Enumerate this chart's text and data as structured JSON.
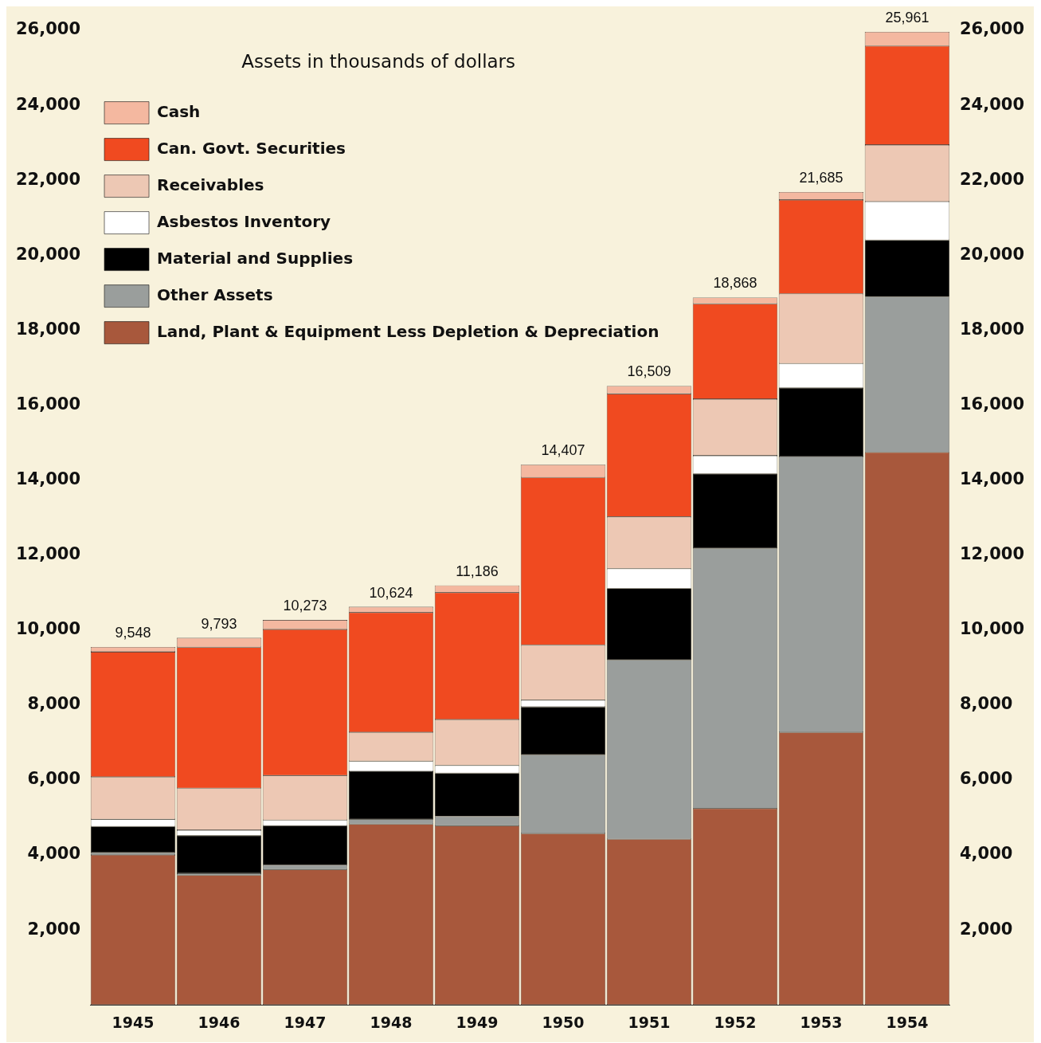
{
  "chart_data": {
    "type": "bar",
    "stacked": true,
    "legend": "top left",
    "legend_title": "Assets in thousands of dollars",
    "categories": [
      "1945",
      "1946",
      "1947",
      "1948",
      "1949",
      "1950",
      "1951",
      "1952",
      "1953",
      "1954"
    ],
    "series": [
      {
        "name": "Land, Plant & Equipment Less Depletion & Depreciation",
        "color": "#a8583c",
        "values": [
          4000,
          3460,
          3610,
          4820,
          4780,
          4570,
          4420,
          5240,
          7270,
          14740
        ]
      },
      {
        "name": "Other Assets",
        "color": "#9a9e9c",
        "values": [
          60,
          50,
          120,
          130,
          250,
          2100,
          4780,
          6940,
          7360,
          4150
        ]
      },
      {
        "name": "Material and Supplies",
        "color": "#000000",
        "values": [
          700,
          1010,
          1050,
          1280,
          1150,
          1280,
          1910,
          1990,
          1830,
          1510
        ]
      },
      {
        "name": "Asbestos Inventory",
        "color": "#ffffff",
        "values": [
          190,
          140,
          150,
          270,
          210,
          180,
          530,
          480,
          650,
          1030
        ]
      },
      {
        "name": "Receivables",
        "color": "#edc8b4",
        "values": [
          1130,
          1120,
          1190,
          770,
          1220,
          1470,
          1380,
          1510,
          1860,
          1510
        ]
      },
      {
        "name": "Can. Govt. Securities",
        "color": "#f04a20",
        "values": [
          3340,
          3760,
          3900,
          3200,
          3390,
          4470,
          3280,
          2540,
          2505,
          2640
        ]
      },
      {
        "name": "Cash",
        "color": "#f4b8a0",
        "values": [
          130,
          250,
          250,
          150,
          190,
          340,
          210,
          170,
          210,
          380
        ]
      }
    ],
    "totals": [
      "9,548",
      "9,793",
      "10,273",
      "10,624",
      "11,186",
      "14,407",
      "16,509",
      "18,868",
      "21,685",
      "25,961"
    ],
    "ylim": [
      0,
      26000
    ],
    "yticks": [
      {
        "value": 2000,
        "label": "2,000"
      },
      {
        "value": 4000,
        "label": "4,000"
      },
      {
        "value": 6000,
        "label": "6,000"
      },
      {
        "value": 8000,
        "label": "8,000"
      },
      {
        "value": 10000,
        "label": "10,000"
      },
      {
        "value": 12000,
        "label": "12,000"
      },
      {
        "value": 14000,
        "label": "14,000"
      },
      {
        "value": 16000,
        "label": "16,000"
      },
      {
        "value": 18000,
        "label": "18,000"
      },
      {
        "value": 20000,
        "label": "20,000"
      },
      {
        "value": 22000,
        "label": "22,000"
      },
      {
        "value": 24000,
        "label": "24,000"
      },
      {
        "value": 26000,
        "label": "26,000"
      }
    ],
    "y2lim": [
      0,
      26000
    ],
    "y2ticks": [
      {
        "value": 2000,
        "label": "2,000"
      },
      {
        "value": 4000,
        "label": "4,000"
      },
      {
        "value": 6000,
        "label": "6,000"
      },
      {
        "value": 8000,
        "label": "8,000"
      },
      {
        "value": 10000,
        "label": "10,000"
      },
      {
        "value": 12000,
        "label": "12,000"
      },
      {
        "value": 14000,
        "label": "14,000"
      },
      {
        "value": 16000,
        "label": "16,000"
      },
      {
        "value": 18000,
        "label": "18,000"
      },
      {
        "value": 20000,
        "label": "20,000"
      },
      {
        "value": 22000,
        "label": "22,000"
      },
      {
        "value": 24000,
        "label": "24,000"
      },
      {
        "value": 26000,
        "label": "26,000"
      }
    ]
  }
}
